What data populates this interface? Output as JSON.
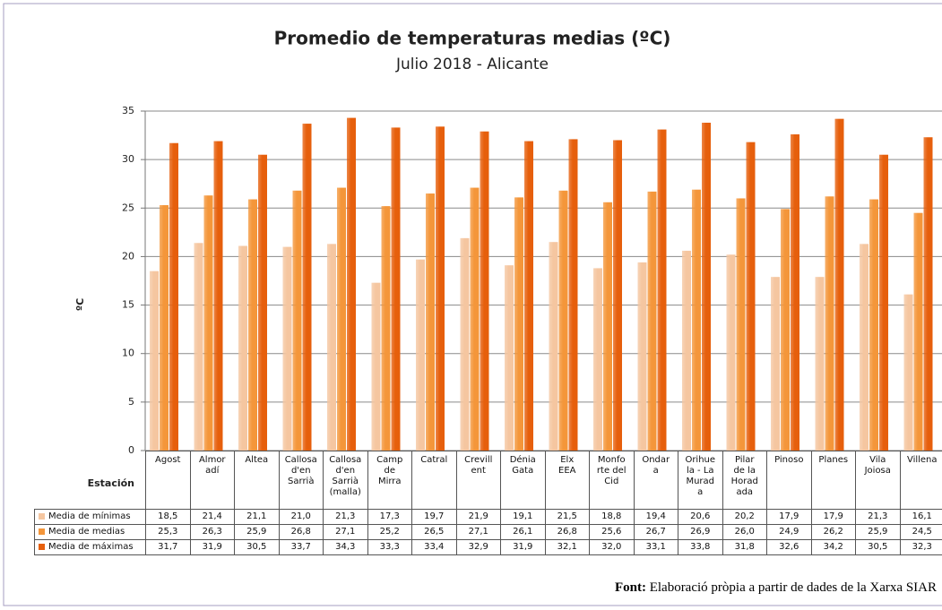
{
  "chart_data": {
    "type": "bar",
    "title": "Promedio de temperaturas medias (ºC)",
    "subtitle": "Julio 2018 - Alicante",
    "y_label": "ºC",
    "x_label": "Estación",
    "categories": [
      "Agost",
      "Almor\nadí",
      "Altea",
      "Callosa\nd'en\nSarrià",
      "Callosa\nd'en\nSarrià\n(malla)",
      "Camp\nde\nMirra",
      "Catral",
      "Crevill\nent",
      "Dénia\nGata",
      "Elx\nEEA",
      "Monfo\nrte del\nCid",
      "Ondar\na",
      "Orihue\nla - La\nMurad\na",
      "Pilar\nde la\nHorad\nada",
      "Pinoso",
      "Planes",
      "Vila\nJoiosa",
      "Villena"
    ],
    "series": [
      {
        "name": "Media de mínimas",
        "color": "#f5c6a0",
        "values": [
          18.5,
          21.4,
          21.1,
          21.0,
          21.3,
          17.3,
          19.7,
          21.9,
          19.1,
          21.5,
          18.8,
          19.4,
          20.6,
          20.2,
          17.9,
          17.9,
          21.3,
          16.1
        ],
        "value_labels": [
          "18,5",
          "21,4",
          "21,1",
          "21,0",
          "21,3",
          "17,3",
          "19,7",
          "21,9",
          "19,1",
          "21,5",
          "18,8",
          "19,4",
          "20,6",
          "20,2",
          "17,9",
          "17,9",
          "21,3",
          "16,1"
        ]
      },
      {
        "name": "Media de medias",
        "color": "#f4963a",
        "values": [
          25.3,
          26.3,
          25.9,
          26.8,
          27.1,
          25.2,
          26.5,
          27.1,
          26.1,
          26.8,
          25.6,
          26.7,
          26.9,
          26.0,
          24.9,
          26.2,
          25.9,
          24.5
        ],
        "value_labels": [
          "25,3",
          "26,3",
          "25,9",
          "26,8",
          "27,1",
          "25,2",
          "26,5",
          "27,1",
          "26,1",
          "26,8",
          "25,6",
          "26,7",
          "26,9",
          "26,0",
          "24,9",
          "26,2",
          "25,9",
          "24,5"
        ]
      },
      {
        "name": "Media de máximas",
        "color": "#e65f0c",
        "values": [
          31.7,
          31.9,
          30.5,
          33.7,
          34.3,
          33.3,
          33.4,
          32.9,
          31.9,
          32.1,
          32.0,
          33.1,
          33.8,
          31.8,
          32.6,
          34.2,
          30.5,
          32.3
        ],
        "value_labels": [
          "31,7",
          "31,9",
          "30,5",
          "33,7",
          "34,3",
          "33,3",
          "33,4",
          "32,9",
          "31,9",
          "32,1",
          "32,0",
          "33,1",
          "33,8",
          "31,8",
          "32,6",
          "34,2",
          "30,5",
          "32,3"
        ]
      }
    ],
    "ylim": [
      0,
      35
    ],
    "yticks": [
      0,
      5,
      10,
      15,
      20,
      25,
      30,
      35
    ],
    "grid": true,
    "source": {
      "label": "Font:",
      "text": "Elaboració pròpia a partir de dades de la Xarxa SIAR"
    }
  }
}
